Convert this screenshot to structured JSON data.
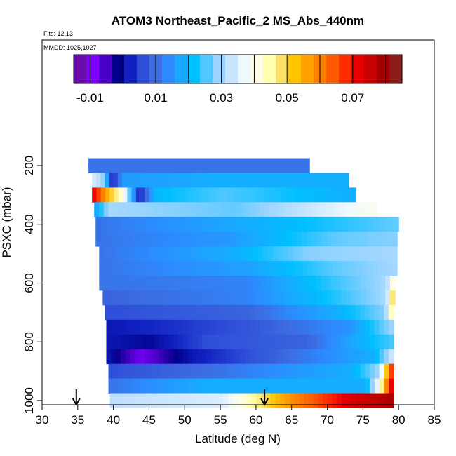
{
  "chart_data": {
    "type": "heatmap",
    "title": "ATOM3 Northeast_Pacific_2 MS_Abs_440nm",
    "annotations": {
      "flights": "Flts: 12,13",
      "dates": "MMDD: 1025,1027"
    },
    "xlabel": "Latitude (deg N)",
    "ylabel": "PSXC (mbar)",
    "xlim": [
      30,
      85
    ],
    "ylim": [
      1000,
      0
    ],
    "x_ticks": [
      "30",
      "35",
      "40",
      "45",
      "50",
      "55",
      "60",
      "65",
      "70",
      "75",
      "80",
      "85"
    ],
    "y_ticks": [
      "200",
      "400",
      "600",
      "800",
      "1000"
    ],
    "colorbar": {
      "range": [
        -0.015,
        0.085
      ],
      "tick_labels": [
        "-0.01",
        "0.01",
        "0.03",
        "0.05",
        "0.07"
      ],
      "palette": [
        "#6a0dad",
        "#7f00ff",
        "#4b00c8",
        "#00008b",
        "#1020c0",
        "#2e4fd8",
        "#3d6be0",
        "#2c8cff",
        "#1aa8ff",
        "#00bfff",
        "#50c8ff",
        "#9ad4ff",
        "#c8e4ff",
        "#eef8ff",
        "#fffde6",
        "#ffffb0",
        "#ffe066",
        "#ffc400",
        "#ffa000",
        "#ff7f00",
        "#ff5a00",
        "#ff2a00",
        "#e60000",
        "#c80000",
        "#a00000",
        "#8b1a1a"
      ]
    },
    "markers": [
      {
        "label": "arrow",
        "latitude": 34.8
      },
      {
        "label": "arrow",
        "latitude": 61.2
      }
    ],
    "bands": [
      {
        "p": 200,
        "lat0": 36.5,
        "lat1": 67.5,
        "stops": [
          [
            0,
            0.01
          ],
          [
            1,
            0.01
          ]
        ]
      },
      {
        "p": 250,
        "lat0": 37.0,
        "lat1": 73.0,
        "stops": [
          [
            0,
            0.035
          ],
          [
            0.04,
            0.03
          ],
          [
            0.08,
            0.0
          ],
          [
            0.12,
            0.015
          ],
          [
            0.5,
            0.018
          ],
          [
            1,
            0.018
          ]
        ]
      },
      {
        "p": 300,
        "lat0": 37.0,
        "lat1": 74.0,
        "stops": [
          [
            0,
            0.075
          ],
          [
            0.06,
            0.055
          ],
          [
            0.12,
            0.04
          ],
          [
            0.18,
            0.0
          ],
          [
            0.24,
            0.02
          ],
          [
            0.5,
            0.025
          ],
          [
            1,
            0.018
          ]
        ]
      },
      {
        "p": 350,
        "lat0": 37.3,
        "lat1": 77.0,
        "stops": [
          [
            0,
            0.015
          ],
          [
            0.05,
            0.03
          ],
          [
            0.5,
            0.026
          ],
          [
            1,
            0.04
          ]
        ]
      },
      {
        "p": 400,
        "lat0": 37.5,
        "lat1": 80.0,
        "stops": [
          [
            0,
            0.01
          ],
          [
            0.5,
            0.018
          ],
          [
            1,
            0.026
          ]
        ]
      },
      {
        "p": 450,
        "lat0": 37.5,
        "lat1": 79.8,
        "stops": [
          [
            0,
            0.01
          ],
          [
            0.45,
            0.015
          ],
          [
            0.8,
            0.026
          ],
          [
            1,
            0.028
          ]
        ]
      },
      {
        "p": 500,
        "lat0": 38.0,
        "lat1": 79.8,
        "stops": [
          [
            0,
            0.01
          ],
          [
            0.45,
            0.018
          ],
          [
            0.7,
            0.028
          ],
          [
            1,
            0.03
          ]
        ]
      },
      {
        "p": 550,
        "lat0": 38.0,
        "lat1": 79.8,
        "stops": [
          [
            0,
            0.01
          ],
          [
            0.5,
            0.016
          ],
          [
            0.8,
            0.026
          ],
          [
            1,
            0.03
          ]
        ]
      },
      {
        "p": 600,
        "lat0": 38.0,
        "lat1": 79.5,
        "stops": [
          [
            0,
            0.01
          ],
          [
            0.5,
            0.012
          ],
          [
            0.8,
            0.024
          ],
          [
            0.97,
            0.03
          ],
          [
            1,
            0.045
          ]
        ]
      },
      {
        "p": 650,
        "lat0": 38.5,
        "lat1": 79.5,
        "stops": [
          [
            0,
            0.008
          ],
          [
            0.5,
            0.012
          ],
          [
            0.78,
            0.022
          ],
          [
            0.97,
            0.03
          ],
          [
            1,
            0.055
          ]
        ]
      },
      {
        "p": 700,
        "lat0": 38.8,
        "lat1": 79.3,
        "stops": [
          [
            0,
            0.005
          ],
          [
            0.5,
            0.008
          ],
          [
            0.8,
            0.018
          ],
          [
            0.97,
            0.028
          ],
          [
            1,
            0.05
          ]
        ]
      },
      {
        "p": 750,
        "lat0": 39.0,
        "lat1": 79.3,
        "stops": [
          [
            0,
            0.0
          ],
          [
            0.2,
            0.002
          ],
          [
            0.5,
            0.006
          ],
          [
            0.85,
            0.014
          ],
          [
            1,
            0.03
          ]
        ]
      },
      {
        "p": 800,
        "lat0": 39.0,
        "lat1": 79.3,
        "stops": [
          [
            0,
            0.0
          ],
          [
            0.15,
            -0.002
          ],
          [
            0.35,
            0.005
          ],
          [
            0.7,
            0.008
          ],
          [
            1,
            0.025
          ]
        ]
      },
      {
        "p": 850,
        "lat0": 39.0,
        "lat1": 79.3,
        "stops": [
          [
            0,
            0.0
          ],
          [
            0.12,
            -0.01
          ],
          [
            0.3,
            0.0
          ],
          [
            0.6,
            0.008
          ],
          [
            0.93,
            0.018
          ],
          [
            1,
            0.035
          ]
        ]
      },
      {
        "p": 900,
        "lat0": 39.3,
        "lat1": 79.3,
        "stops": [
          [
            0,
            0.005
          ],
          [
            0.4,
            0.01
          ],
          [
            0.85,
            0.018
          ],
          [
            0.95,
            0.03
          ],
          [
            1,
            0.075
          ]
        ]
      },
      {
        "p": 950,
        "lat0": 39.3,
        "lat1": 79.3,
        "stops": [
          [
            0,
            0.01
          ],
          [
            0.35,
            0.018
          ],
          [
            0.9,
            0.018
          ],
          [
            0.95,
            0.04
          ],
          [
            1,
            0.08
          ]
        ]
      },
      {
        "p": 1000,
        "lat0": 39.5,
        "lat1": 79.3,
        "stops": [
          [
            0,
            0.032
          ],
          [
            0.4,
            0.035
          ],
          [
            0.5,
            0.045
          ],
          [
            0.65,
            0.06
          ],
          [
            0.85,
            0.075
          ],
          [
            1,
            0.08
          ]
        ]
      }
    ]
  }
}
